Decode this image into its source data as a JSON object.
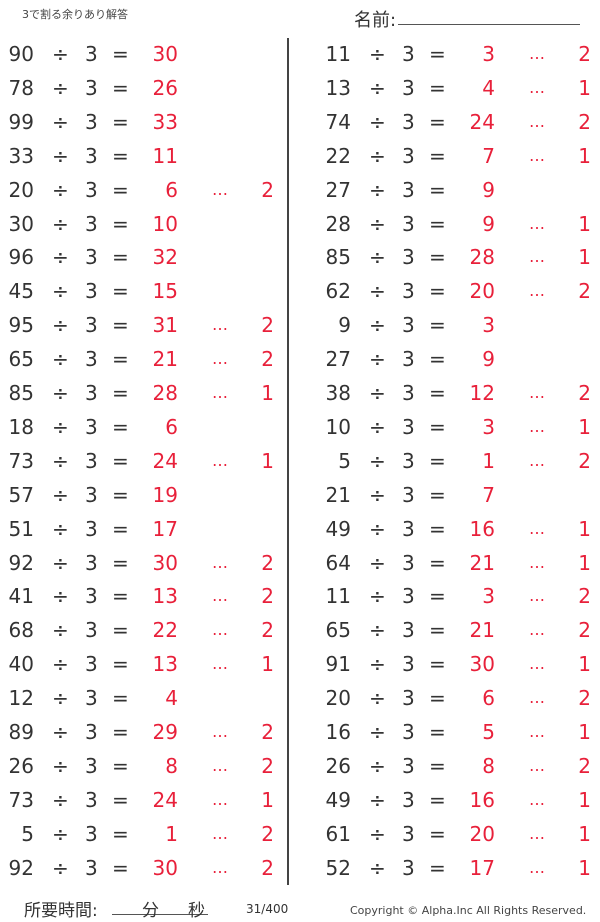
{
  "header": {
    "title": "3で割る余りあり解答",
    "name_label": "名前:"
  },
  "colors": {
    "answer": "#e8203a"
  },
  "divisor": "3",
  "op": "÷",
  "eq": "=",
  "rem_sep": "…",
  "left": [
    [
      "90",
      "30",
      ""
    ],
    [
      "78",
      "26",
      ""
    ],
    [
      "99",
      "33",
      ""
    ],
    [
      "33",
      "11",
      ""
    ],
    [
      "20",
      "6",
      "2"
    ],
    [
      "30",
      "10",
      ""
    ],
    [
      "96",
      "32",
      ""
    ],
    [
      "45",
      "15",
      ""
    ],
    [
      "95",
      "31",
      "2"
    ],
    [
      "65",
      "21",
      "2"
    ],
    [
      "85",
      "28",
      "1"
    ],
    [
      "18",
      "6",
      ""
    ],
    [
      "73",
      "24",
      "1"
    ],
    [
      "57",
      "19",
      ""
    ],
    [
      "51",
      "17",
      ""
    ],
    [
      "92",
      "30",
      "2"
    ],
    [
      "41",
      "13",
      "2"
    ],
    [
      "68",
      "22",
      "2"
    ],
    [
      "40",
      "13",
      "1"
    ],
    [
      "12",
      "4",
      ""
    ],
    [
      "89",
      "29",
      "2"
    ],
    [
      "26",
      "8",
      "2"
    ],
    [
      "73",
      "24",
      "1"
    ],
    [
      "5",
      "1",
      "2"
    ],
    [
      "92",
      "30",
      "2"
    ]
  ],
  "right": [
    [
      "11",
      "3",
      "2"
    ],
    [
      "13",
      "4",
      "1"
    ],
    [
      "74",
      "24",
      "2"
    ],
    [
      "22",
      "7",
      "1"
    ],
    [
      "27",
      "9",
      ""
    ],
    [
      "28",
      "9",
      "1"
    ],
    [
      "85",
      "28",
      "1"
    ],
    [
      "62",
      "20",
      "2"
    ],
    [
      "9",
      "3",
      ""
    ],
    [
      "27",
      "9",
      ""
    ],
    [
      "38",
      "12",
      "2"
    ],
    [
      "10",
      "3",
      "1"
    ],
    [
      "5",
      "1",
      "2"
    ],
    [
      "21",
      "7",
      ""
    ],
    [
      "49",
      "16",
      "1"
    ],
    [
      "64",
      "21",
      "1"
    ],
    [
      "11",
      "3",
      "2"
    ],
    [
      "65",
      "21",
      "2"
    ],
    [
      "91",
      "30",
      "1"
    ],
    [
      "20",
      "6",
      "2"
    ],
    [
      "16",
      "5",
      "1"
    ],
    [
      "26",
      "8",
      "2"
    ],
    [
      "49",
      "16",
      "1"
    ],
    [
      "61",
      "20",
      "1"
    ],
    [
      "52",
      "17",
      "1"
    ]
  ],
  "footer": {
    "time_label": "所要時間:",
    "minutes": "分",
    "seconds": "秒",
    "page": "31/400",
    "copyright": "Copyright ©  Alpha.Inc All Rights Reserved."
  }
}
